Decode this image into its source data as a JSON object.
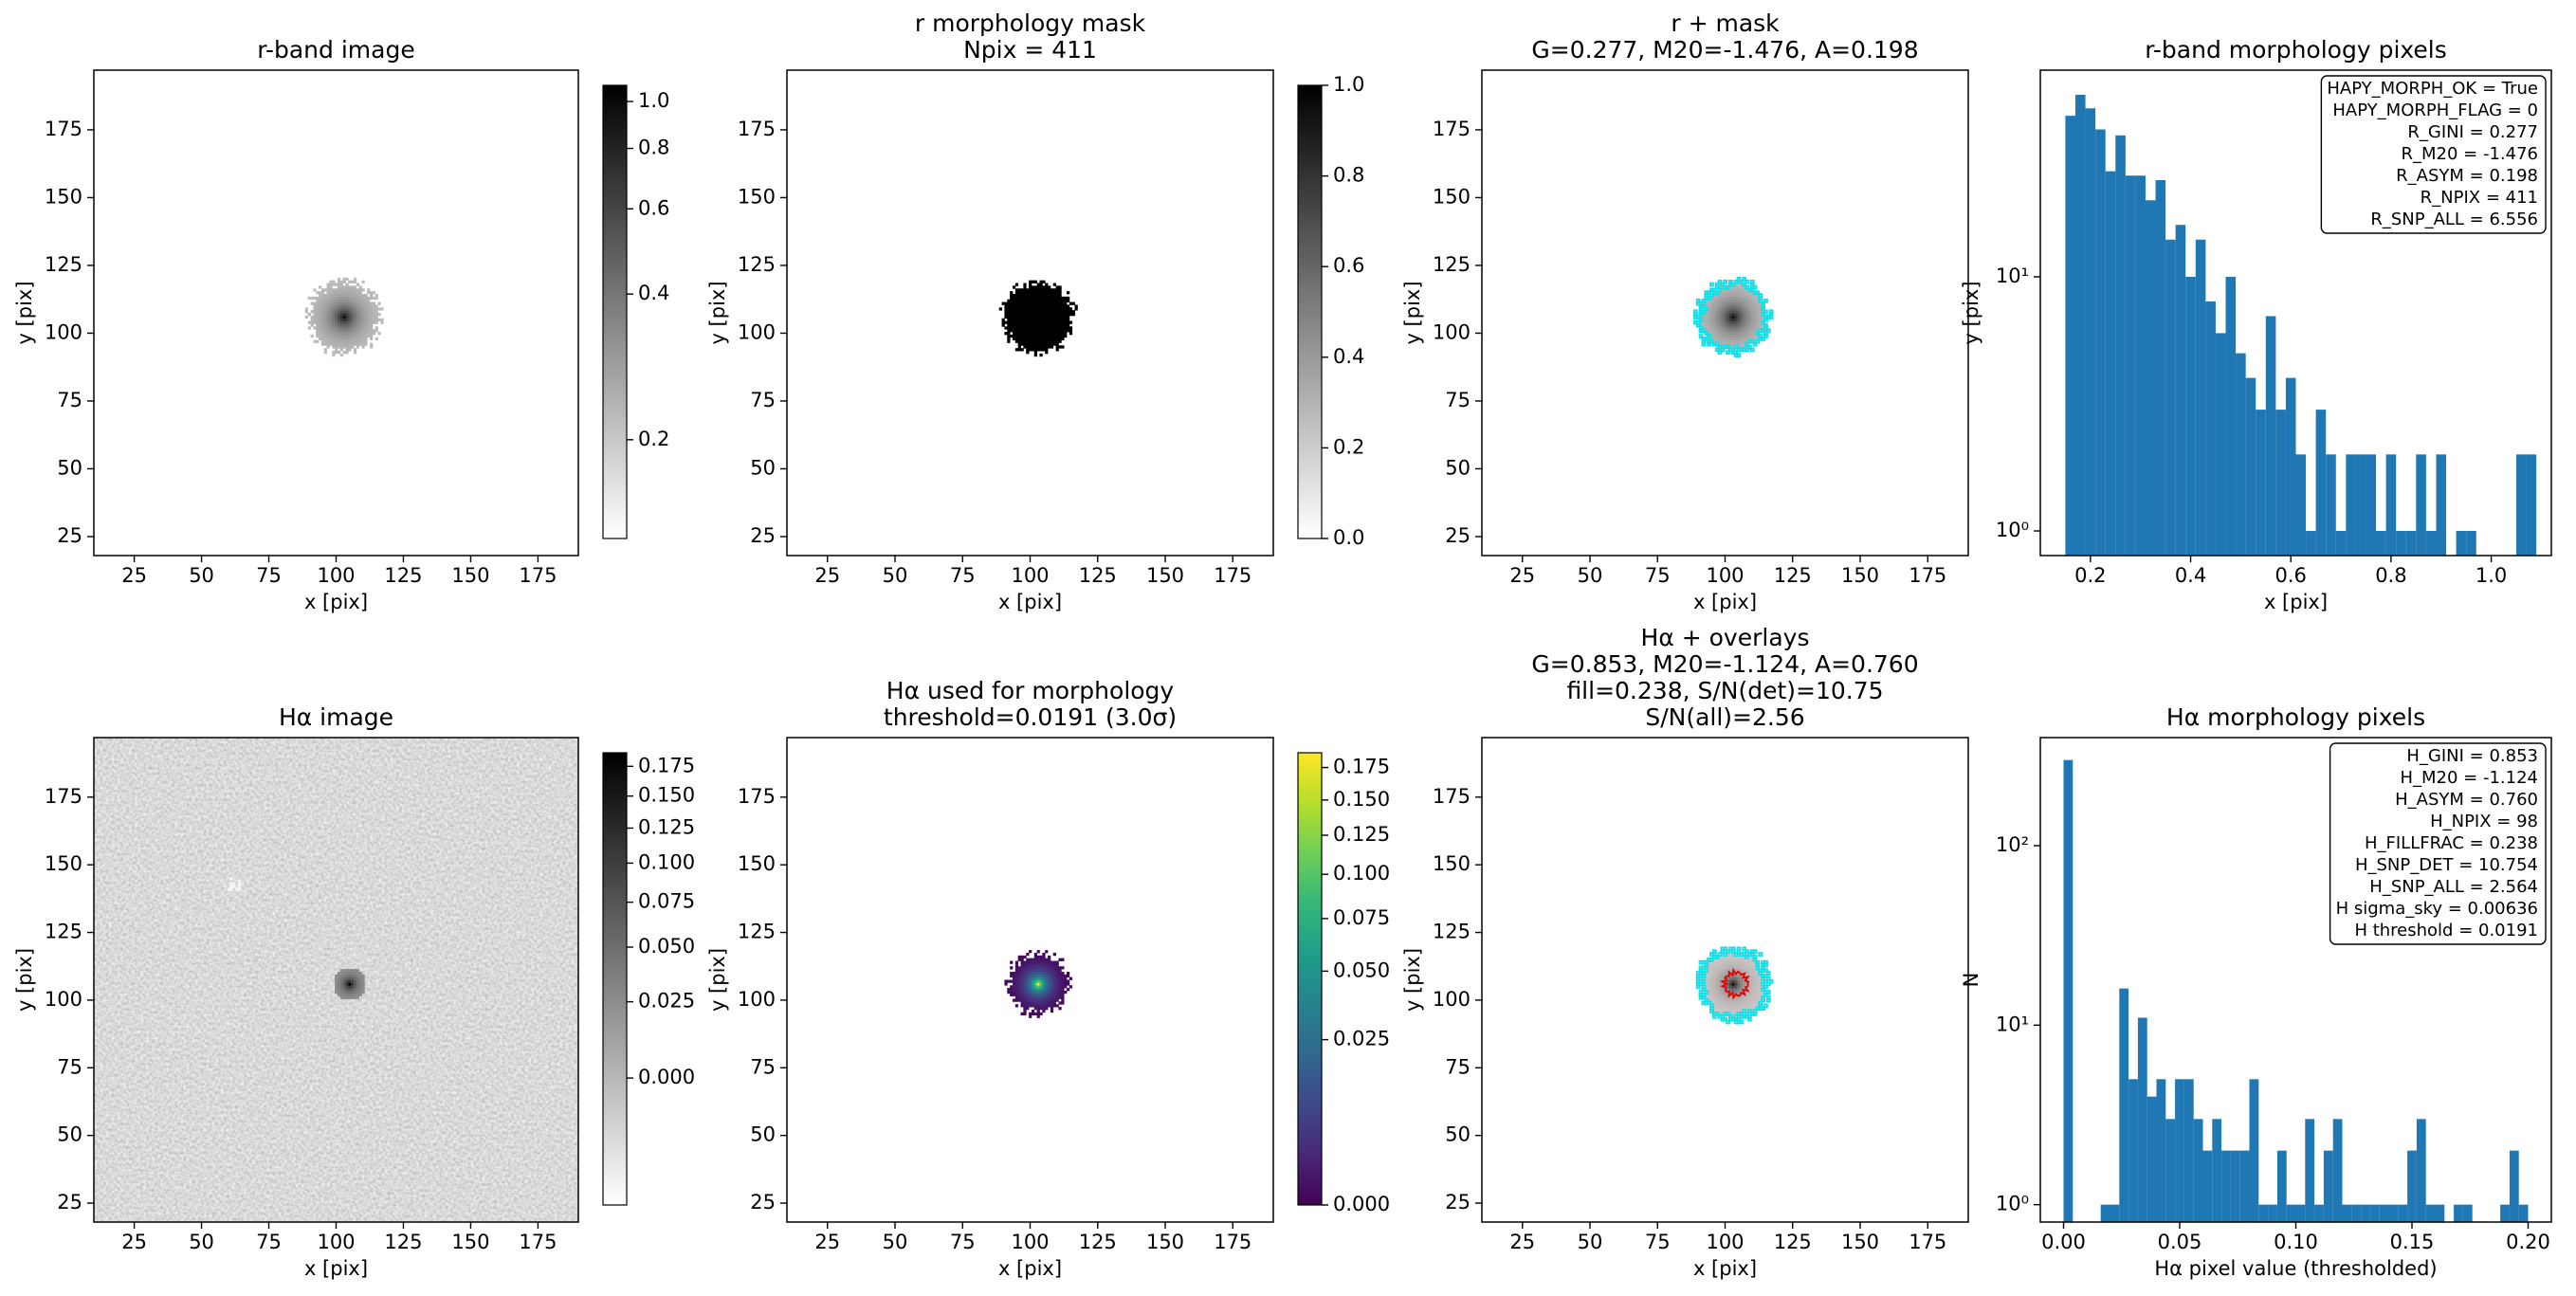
{
  "chart_data": [
    {
      "type": "image",
      "title": [
        "r-band image"
      ],
      "xlabel": "x [pix]",
      "ylabel": "y [pix]",
      "xlim": [
        10,
        190
      ],
      "ylim": [
        18,
        197
      ],
      "xticks": [
        25,
        50,
        75,
        100,
        125,
        150,
        175
      ],
      "yticks": [
        25,
        50,
        75,
        100,
        125,
        150,
        175
      ],
      "colorbar": {
        "clim": [
          0.125,
          1.08
        ],
        "stretch": "log",
        "cmap": "gray_r",
        "ticks": [
          0.2,
          0.4,
          0.6,
          0.8,
          {
            "value": 1.0,
            "label": "1.0"
          }
        ]
      }
    },
    {
      "type": "image",
      "title": [
        "r morphology mask",
        "Npix = 411"
      ],
      "xlabel": "x [pix]",
      "ylabel": "y [pix]",
      "xlim": [
        10,
        190
      ],
      "ylim": [
        18,
        197
      ],
      "xticks": [
        25,
        50,
        75,
        100,
        125,
        150,
        175
      ],
      "yticks": [
        25,
        50,
        75,
        100,
        125,
        150,
        175
      ],
      "colorbar": {
        "clim": [
          0,
          1
        ],
        "stretch": "linear",
        "cmap": "gray_r",
        "ticks": [
          {
            "value": 0,
            "label": "0.0"
          },
          0.2,
          0.4,
          0.6,
          0.8,
          {
            "value": 1,
            "label": "1.0"
          }
        ]
      }
    },
    {
      "type": "image",
      "title": [
        "r + mask",
        "G=0.277, M20=-1.476, A=0.198"
      ],
      "xlabel": "x [pix]",
      "ylabel": "y [pix]",
      "xlim": [
        10,
        190
      ],
      "ylim": [
        18,
        197
      ],
      "xticks": [
        25,
        50,
        75,
        100,
        125,
        150,
        175
      ],
      "yticks": [
        25,
        50,
        75,
        100,
        125,
        150,
        175
      ]
    },
    {
      "type": "histogram",
      "title": [
        "r-band morphology pixels"
      ],
      "xlabel": "x [pix]",
      "ylabel": "y [pix]",
      "color": "#1f77b4",
      "yscale": "log",
      "xlim": [
        0.1,
        1.12
      ],
      "ylim": [
        0.8,
        65
      ],
      "xticks": [
        0.2,
        0.4,
        0.6,
        0.8,
        {
          "value": 1.0,
          "label": "1.0"
        }
      ],
      "yticks": [
        {
          "value": 1,
          "label": "10⁰"
        },
        {
          "value": 10,
          "label": "10¹"
        }
      ],
      "bins": [
        0.15,
        0.17,
        0.19,
        0.21,
        0.23,
        0.25,
        0.27,
        0.29,
        0.31,
        0.33,
        0.35,
        0.37,
        0.39,
        0.41,
        0.43,
        0.45,
        0.47,
        0.49,
        0.51,
        0.53,
        0.55,
        0.57,
        0.59,
        0.61,
        0.63,
        0.65,
        0.67,
        0.69,
        0.71,
        0.73,
        0.75,
        0.77,
        0.79,
        0.81,
        0.83,
        0.85,
        0.87,
        0.89,
        0.91,
        0.93,
        0.95,
        0.97,
        0.99,
        1.01,
        1.03,
        1.05,
        1.07,
        1.09
      ],
      "values": [
        43,
        52,
        46,
        38,
        26,
        36,
        25,
        25,
        20,
        24,
        14,
        16,
        10,
        14,
        8,
        6,
        10,
        5,
        4,
        3,
        7,
        3,
        4,
        2,
        1,
        3,
        2,
        1,
        2,
        2,
        2,
        1,
        2,
        1,
        1,
        2,
        1,
        2,
        0,
        1,
        1,
        0,
        0,
        0,
        0,
        2,
        2
      ],
      "annotation": [
        "HAPY_MORPH_OK = True",
        "HAPY_MORPH_FLAG = 0",
        "R_GINI = 0.277",
        "R_M20 = -1.476",
        "R_ASYM = 0.198",
        "R_NPIX = 411",
        "R_SNP_ALL = 6.556"
      ]
    },
    {
      "type": "image",
      "title": [
        "Hα image"
      ],
      "xlabel": "x [pix]",
      "ylabel": "y [pix]",
      "xlim": [
        10,
        190
      ],
      "ylim": [
        18,
        197
      ],
      "xticks": [
        25,
        50,
        75,
        100,
        125,
        150,
        175
      ],
      "yticks": [
        25,
        50,
        75,
        100,
        125,
        150,
        175
      ],
      "colorbar": {
        "clim": [
          -0.016,
          0.187
        ],
        "stretch": "sqrt",
        "cmap": "gray_r",
        "ticks": [
          {
            "value": 0,
            "label": "0.000"
          },
          {
            "value": 0.025,
            "label": "0.025"
          },
          {
            "value": 0.05,
            "label": "0.050"
          },
          {
            "value": 0.075,
            "label": "0.075"
          },
          {
            "value": 0.1,
            "label": "0.100"
          },
          {
            "value": 0.125,
            "label": "0.125"
          },
          {
            "value": 0.15,
            "label": "0.150"
          },
          {
            "value": 0.175,
            "label": "0.175"
          }
        ]
      }
    },
    {
      "type": "image",
      "title": [
        "Hα used for morphology",
        "threshold=0.0191 (3.0σ)"
      ],
      "xlabel": "x [pix]",
      "ylabel": "y [pix]",
      "xlim": [
        10,
        190
      ],
      "ylim": [
        18,
        197
      ],
      "xticks": [
        25,
        50,
        75,
        100,
        125,
        150,
        175
      ],
      "yticks": [
        25,
        50,
        75,
        100,
        125,
        150,
        175
      ],
      "colorbar": {
        "clim": [
          0,
          0.187
        ],
        "stretch": "sqrt",
        "cmap": "viridis",
        "ticks": [
          {
            "value": 0,
            "label": "0.000"
          },
          {
            "value": 0.025,
            "label": "0.025"
          },
          {
            "value": 0.05,
            "label": "0.050"
          },
          {
            "value": 0.075,
            "label": "0.075"
          },
          {
            "value": 0.1,
            "label": "0.100"
          },
          {
            "value": 0.125,
            "label": "0.125"
          },
          {
            "value": 0.15,
            "label": "0.150"
          },
          {
            "value": 0.175,
            "label": "0.175"
          }
        ]
      }
    },
    {
      "type": "image",
      "title": [
        "Hα + overlays",
        "G=0.853, M20=-1.124, A=0.760",
        "fill=0.238, S/N(det)=10.75",
        "S/N(all)=2.56"
      ],
      "xlabel": "x [pix]",
      "ylabel": "y [pix]",
      "xlim": [
        10,
        190
      ],
      "ylim": [
        18,
        197
      ],
      "xticks": [
        25,
        50,
        75,
        100,
        125,
        150,
        175
      ],
      "yticks": [
        25,
        50,
        75,
        100,
        125,
        150,
        175
      ]
    },
    {
      "type": "histogram",
      "title": [
        "Hα morphology pixels"
      ],
      "xlabel": "Hα pixel value (thresholded)",
      "ylabel": "N",
      "color": "#1f77b4",
      "yscale": "log",
      "xlim": [
        -0.01,
        0.21
      ],
      "ylim": [
        0.8,
        400
      ],
      "xticks": [
        {
          "value": 0,
          "label": "0.00"
        },
        {
          "value": 0.05,
          "label": "0.05"
        },
        {
          "value": 0.1,
          "label": "0.10"
        },
        {
          "value": 0.15,
          "label": "0.15"
        },
        {
          "value": 0.2,
          "label": "0.20"
        }
      ],
      "yticks": [
        {
          "value": 1,
          "label": "10⁰"
        },
        {
          "value": 10,
          "label": "10¹"
        },
        {
          "value": 100,
          "label": "10²"
        }
      ],
      "bins": [
        0,
        0.004,
        0.008,
        0.012,
        0.016,
        0.02,
        0.024,
        0.028,
        0.032,
        0.036,
        0.04,
        0.044,
        0.048,
        0.052,
        0.056,
        0.06,
        0.064,
        0.068,
        0.072,
        0.076,
        0.08,
        0.084,
        0.088,
        0.092,
        0.096,
        0.1,
        0.104,
        0.108,
        0.112,
        0.116,
        0.12,
        0.124,
        0.128,
        0.132,
        0.136,
        0.14,
        0.144,
        0.148,
        0.152,
        0.156,
        0.16,
        0.164,
        0.168,
        0.172,
        0.176,
        0.18,
        0.184,
        0.188,
        0.192,
        0.196,
        0.2
      ],
      "values": [
        300,
        0,
        0,
        0,
        1,
        1,
        16,
        5,
        11,
        4,
        5,
        3,
        5,
        5,
        3,
        2,
        3,
        2,
        2,
        2,
        5,
        1,
        1,
        2,
        1,
        1,
        3,
        1,
        2,
        3,
        1,
        1,
        1,
        1,
        1,
        1,
        1,
        2,
        3,
        1,
        1,
        0,
        1,
        1,
        0,
        0,
        0,
        1,
        2,
        1
      ],
      "annotation": [
        "H_GINI = 0.853",
        "H_M20 = -1.124",
        "H_ASYM = 0.760",
        "H_NPIX = 98",
        "H_FILLFRAC = 0.238",
        "H_SNP_DET = 10.754",
        "H_SNP_ALL = 2.564",
        "H sigma_sky = 0.00636",
        "H threshold = 0.0191"
      ]
    }
  ]
}
